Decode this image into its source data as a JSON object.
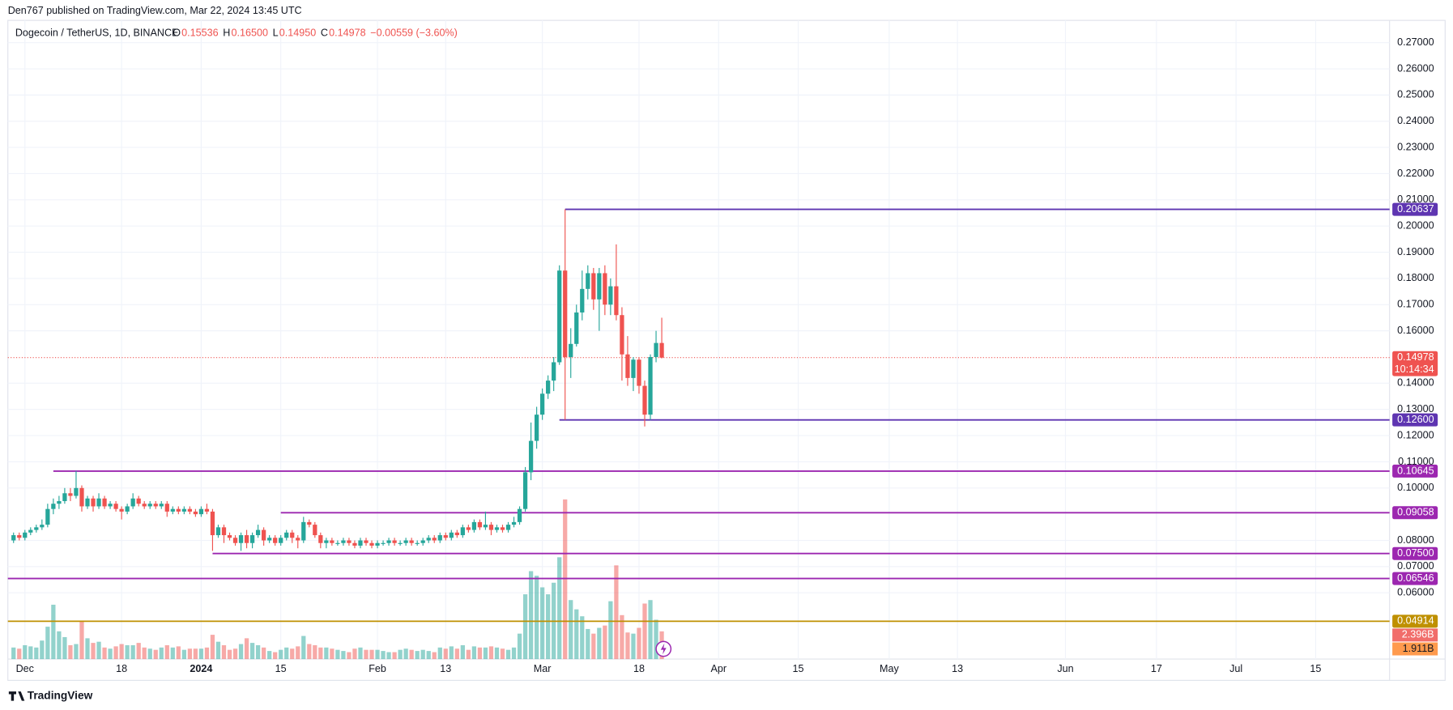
{
  "header": {
    "publisher": "Den767 published on TradingView.com, Mar 22, 2024 13:45 UTC",
    "footer": "TradingView"
  },
  "chart_data": {
    "type": "candlestick",
    "symbol": "Dogecoin / TetherUS, 1D, BINANCE",
    "ohlc_header": [
      {
        "key": "O",
        "text": "0.15536"
      },
      {
        "key": "H",
        "text": "0.16500"
      },
      {
        "key": "L",
        "text": "0.14950"
      },
      {
        "key": "C",
        "text": "0.14978"
      }
    ],
    "change": "−0.00559 (−3.60%)",
    "up_color": "#26a69a",
    "down_color": "#ef5350",
    "xlim": [
      "2023-11-28",
      "2024-07-28"
    ],
    "xticks": [
      {
        "value": "2023-12-01",
        "label": "Dec"
      },
      {
        "value": "2023-12-18",
        "label": "18"
      },
      {
        "value": "2024-01-01",
        "label": "2024"
      },
      {
        "value": "2024-01-15",
        "label": "15"
      },
      {
        "value": "2024-02-01",
        "label": "Feb"
      },
      {
        "value": "2024-02-13",
        "label": "13"
      },
      {
        "value": "2024-03-01",
        "label": "Mar"
      },
      {
        "value": "2024-03-18",
        "label": "18"
      },
      {
        "value": "2024-04-01",
        "label": "Apr"
      },
      {
        "value": "2024-04-15",
        "label": "15"
      },
      {
        "value": "2024-05-01",
        "label": "May"
      },
      {
        "value": "2024-05-13",
        "label": "13"
      },
      {
        "value": "2024-06-01",
        "label": "Jun"
      },
      {
        "value": "2024-06-17",
        "label": "17"
      },
      {
        "value": "2024-07-01",
        "label": "Jul"
      },
      {
        "value": "2024-07-15",
        "label": "15"
      }
    ],
    "ylim": [
      0.0347,
      0.2785
    ],
    "yticks": [
      {
        "value": 0.27,
        "label": "0.27000"
      },
      {
        "value": 0.26,
        "label": "0.26000"
      },
      {
        "value": 0.25,
        "label": "0.25000"
      },
      {
        "value": 0.24,
        "label": "0.24000"
      },
      {
        "value": 0.23,
        "label": "0.23000"
      },
      {
        "value": 0.22,
        "label": "0.22000"
      },
      {
        "value": 0.21,
        "label": "0.21000"
      },
      {
        "value": 0.2,
        "label": "0.20000"
      },
      {
        "value": 0.19,
        "label": "0.19000"
      },
      {
        "value": 0.18,
        "label": "0.18000"
      },
      {
        "value": 0.17,
        "label": "0.17000"
      },
      {
        "value": 0.16,
        "label": "0.16000"
      },
      {
        "value": 0.14,
        "label": "0.14000"
      },
      {
        "value": 0.13,
        "label": "0.13000"
      },
      {
        "value": 0.12,
        "label": "0.12000"
      },
      {
        "value": 0.11,
        "label": "0.11000"
      },
      {
        "value": 0.1,
        "label": "0.10000"
      },
      {
        "value": 0.08,
        "label": "0.08000"
      },
      {
        "value": 0.07,
        "label": "0.07000"
      },
      {
        "value": 0.06,
        "label": "0.06000"
      }
    ],
    "grid": true,
    "x": [
      "2023-11-29",
      "2023-11-30",
      "2023-12-01",
      "2023-12-02",
      "2023-12-03",
      "2023-12-04",
      "2023-12-05",
      "2023-12-06",
      "2023-12-07",
      "2023-12-08",
      "2023-12-09",
      "2023-12-10",
      "2023-12-11",
      "2023-12-12",
      "2023-12-13",
      "2023-12-14",
      "2023-12-15",
      "2023-12-16",
      "2023-12-17",
      "2023-12-18",
      "2023-12-19",
      "2023-12-20",
      "2023-12-21",
      "2023-12-22",
      "2023-12-23",
      "2023-12-24",
      "2023-12-25",
      "2023-12-26",
      "2023-12-27",
      "2023-12-28",
      "2023-12-29",
      "2023-12-30",
      "2023-12-31",
      "2024-01-01",
      "2024-01-02",
      "2024-01-03",
      "2024-01-04",
      "2024-01-05",
      "2024-01-06",
      "2024-01-07",
      "2024-01-08",
      "2024-01-09",
      "2024-01-10",
      "2024-01-11",
      "2024-01-12",
      "2024-01-13",
      "2024-01-14",
      "2024-01-15",
      "2024-01-16",
      "2024-01-17",
      "2024-01-18",
      "2024-01-19",
      "2024-01-20",
      "2024-01-21",
      "2024-01-22",
      "2024-01-23",
      "2024-01-24",
      "2024-01-25",
      "2024-01-26",
      "2024-01-27",
      "2024-01-28",
      "2024-01-29",
      "2024-01-30",
      "2024-01-31",
      "2024-02-01",
      "2024-02-02",
      "2024-02-03",
      "2024-02-04",
      "2024-02-05",
      "2024-02-06",
      "2024-02-07",
      "2024-02-08",
      "2024-02-09",
      "2024-02-10",
      "2024-02-11",
      "2024-02-12",
      "2024-02-13",
      "2024-02-14",
      "2024-02-15",
      "2024-02-16",
      "2024-02-17",
      "2024-02-18",
      "2024-02-19",
      "2024-02-20",
      "2024-02-21",
      "2024-02-22",
      "2024-02-23",
      "2024-02-24",
      "2024-02-25",
      "2024-02-26",
      "2024-02-27",
      "2024-02-28",
      "2024-02-29",
      "2024-03-01",
      "2024-03-02",
      "2024-03-03",
      "2024-03-04",
      "2024-03-05",
      "2024-03-06",
      "2024-03-07",
      "2024-03-08",
      "2024-03-09",
      "2024-03-10",
      "2024-03-11",
      "2024-03-12",
      "2024-03-13",
      "2024-03-14",
      "2024-03-15",
      "2024-03-16",
      "2024-03-17",
      "2024-03-18",
      "2024-03-19",
      "2024-03-20",
      "2024-03-21",
      "2024-03-22"
    ],
    "candles": [
      [
        0.08,
        0.083,
        0.079,
        0.082
      ],
      [
        0.082,
        0.083,
        0.08,
        0.081
      ],
      [
        0.081,
        0.084,
        0.08,
        0.083
      ],
      [
        0.083,
        0.085,
        0.082,
        0.084
      ],
      [
        0.084,
        0.086,
        0.083,
        0.085
      ],
      [
        0.085,
        0.088,
        0.084,
        0.086
      ],
      [
        0.086,
        0.094,
        0.085,
        0.092
      ],
      [
        0.092,
        0.096,
        0.09,
        0.094
      ],
      [
        0.094,
        0.097,
        0.092,
        0.095
      ],
      [
        0.095,
        0.1,
        0.094,
        0.098
      ],
      [
        0.098,
        0.1,
        0.095,
        0.097
      ],
      [
        0.097,
        0.1065,
        0.096,
        0.1
      ],
      [
        0.1,
        0.101,
        0.091,
        0.093
      ],
      [
        0.093,
        0.097,
        0.092,
        0.096
      ],
      [
        0.096,
        0.097,
        0.091,
        0.093
      ],
      [
        0.093,
        0.098,
        0.092,
        0.096
      ],
      [
        0.096,
        0.097,
        0.092,
        0.093
      ],
      [
        0.093,
        0.095,
        0.092,
        0.094
      ],
      [
        0.094,
        0.095,
        0.091,
        0.092
      ],
      [
        0.092,
        0.093,
        0.088,
        0.091
      ],
      [
        0.091,
        0.094,
        0.09,
        0.093
      ],
      [
        0.093,
        0.098,
        0.092,
        0.096
      ],
      [
        0.096,
        0.097,
        0.093,
        0.094
      ],
      [
        0.094,
        0.095,
        0.092,
        0.093
      ],
      [
        0.093,
        0.095,
        0.092,
        0.094
      ],
      [
        0.094,
        0.095,
        0.092,
        0.093
      ],
      [
        0.093,
        0.095,
        0.092,
        0.094
      ],
      [
        0.094,
        0.095,
        0.089,
        0.091
      ],
      [
        0.091,
        0.093,
        0.09,
        0.092
      ],
      [
        0.092,
        0.093,
        0.09,
        0.091
      ],
      [
        0.091,
        0.093,
        0.09,
        0.092
      ],
      [
        0.092,
        0.093,
        0.09,
        0.091
      ],
      [
        0.091,
        0.092,
        0.089,
        0.09
      ],
      [
        0.09,
        0.093,
        0.089,
        0.092
      ],
      [
        0.092,
        0.094,
        0.09,
        0.091
      ],
      [
        0.091,
        0.092,
        0.076,
        0.082
      ],
      [
        0.082,
        0.086,
        0.081,
        0.085
      ],
      [
        0.085,
        0.086,
        0.079,
        0.082
      ],
      [
        0.082,
        0.083,
        0.08,
        0.081
      ],
      [
        0.081,
        0.082,
        0.078,
        0.079
      ],
      [
        0.079,
        0.083,
        0.076,
        0.082
      ],
      [
        0.082,
        0.084,
        0.077,
        0.079
      ],
      [
        0.079,
        0.083,
        0.077,
        0.082
      ],
      [
        0.082,
        0.086,
        0.081,
        0.084
      ],
      [
        0.084,
        0.085,
        0.078,
        0.08
      ],
      [
        0.08,
        0.082,
        0.079,
        0.081
      ],
      [
        0.081,
        0.082,
        0.078,
        0.079
      ],
      [
        0.079,
        0.082,
        0.078,
        0.081
      ],
      [
        0.081,
        0.084,
        0.08,
        0.083
      ],
      [
        0.083,
        0.084,
        0.079,
        0.081
      ],
      [
        0.081,
        0.082,
        0.077,
        0.08
      ],
      [
        0.08,
        0.089,
        0.079,
        0.087
      ],
      [
        0.087,
        0.088,
        0.085,
        0.086
      ],
      [
        0.086,
        0.087,
        0.081,
        0.082
      ],
      [
        0.082,
        0.083,
        0.077,
        0.079
      ],
      [
        0.079,
        0.081,
        0.077,
        0.08
      ],
      [
        0.08,
        0.081,
        0.078,
        0.079
      ],
      [
        0.079,
        0.08,
        0.078,
        0.079
      ],
      [
        0.079,
        0.081,
        0.078,
        0.08
      ],
      [
        0.08,
        0.081,
        0.078,
        0.079
      ],
      [
        0.079,
        0.08,
        0.077,
        0.078
      ],
      [
        0.078,
        0.081,
        0.077,
        0.08
      ],
      [
        0.08,
        0.081,
        0.078,
        0.079
      ],
      [
        0.079,
        0.08,
        0.077,
        0.078
      ],
      [
        0.078,
        0.08,
        0.077,
        0.079
      ],
      [
        0.079,
        0.08,
        0.078,
        0.079
      ],
      [
        0.079,
        0.081,
        0.078,
        0.08
      ],
      [
        0.08,
        0.081,
        0.078,
        0.079
      ],
      [
        0.079,
        0.08,
        0.078,
        0.079
      ],
      [
        0.079,
        0.081,
        0.078,
        0.08
      ],
      [
        0.08,
        0.081,
        0.078,
        0.079
      ],
      [
        0.079,
        0.08,
        0.078,
        0.079
      ],
      [
        0.079,
        0.081,
        0.078,
        0.08
      ],
      [
        0.08,
        0.082,
        0.079,
        0.081
      ],
      [
        0.081,
        0.082,
        0.079,
        0.08
      ],
      [
        0.08,
        0.083,
        0.079,
        0.082
      ],
      [
        0.082,
        0.083,
        0.08,
        0.081
      ],
      [
        0.081,
        0.084,
        0.08,
        0.083
      ],
      [
        0.083,
        0.084,
        0.081,
        0.082
      ],
      [
        0.082,
        0.086,
        0.081,
        0.085
      ],
      [
        0.085,
        0.086,
        0.083,
        0.084
      ],
      [
        0.084,
        0.088,
        0.083,
        0.087
      ],
      [
        0.087,
        0.088,
        0.084,
        0.085
      ],
      [
        0.085,
        0.091,
        0.084,
        0.086
      ],
      [
        0.086,
        0.087,
        0.082,
        0.084
      ],
      [
        0.084,
        0.086,
        0.083,
        0.085
      ],
      [
        0.085,
        0.086,
        0.083,
        0.084
      ],
      [
        0.084,
        0.087,
        0.083,
        0.086
      ],
      [
        0.086,
        0.089,
        0.085,
        0.087
      ],
      [
        0.087,
        0.093,
        0.086,
        0.092
      ],
      [
        0.092,
        0.108,
        0.091,
        0.106
      ],
      [
        0.106,
        0.125,
        0.103,
        0.118
      ],
      [
        0.118,
        0.131,
        0.115,
        0.128
      ],
      [
        0.128,
        0.138,
        0.126,
        0.136
      ],
      [
        0.136,
        0.143,
        0.134,
        0.141
      ],
      [
        0.141,
        0.15,
        0.137,
        0.148
      ],
      [
        0.148,
        0.185,
        0.147,
        0.183
      ],
      [
        0.183,
        0.2064,
        0.126,
        0.15
      ],
      [
        0.15,
        0.161,
        0.142,
        0.155
      ],
      [
        0.155,
        0.17,
        0.154,
        0.167
      ],
      [
        0.167,
        0.183,
        0.164,
        0.176
      ],
      [
        0.176,
        0.185,
        0.172,
        0.182
      ],
      [
        0.182,
        0.184,
        0.168,
        0.172
      ],
      [
        0.172,
        0.184,
        0.16,
        0.182
      ],
      [
        0.182,
        0.185,
        0.166,
        0.17
      ],
      [
        0.17,
        0.18,
        0.166,
        0.177
      ],
      [
        0.177,
        0.193,
        0.164,
        0.166
      ],
      [
        0.166,
        0.169,
        0.141,
        0.151
      ],
      [
        0.151,
        0.158,
        0.139,
        0.142
      ],
      [
        0.142,
        0.15,
        0.137,
        0.149
      ],
      [
        0.149,
        0.15,
        0.136,
        0.139
      ],
      [
        0.139,
        0.141,
        0.1235,
        0.128
      ],
      [
        0.128,
        0.151,
        0.126,
        0.15
      ],
      [
        0.15,
        0.16,
        0.148,
        0.15536
      ],
      [
        0.15536,
        0.165,
        0.1495,
        0.14978
      ]
    ],
    "volumes": [
      1.0,
      0.9,
      1.2,
      1.1,
      1.0,
      1.6,
      2.8,
      4.7,
      2.4,
      1.9,
      1.2,
      1.3,
      3.3,
      1.8,
      1.4,
      1.5,
      1.0,
      0.9,
      1.1,
      1.3,
      1.2,
      1.2,
      1.4,
      1.0,
      0.9,
      0.8,
      1.0,
      1.2,
      1.0,
      1.1,
      0.8,
      0.9,
      0.9,
      0.9,
      1.0,
      2.1,
      1.5,
      1.2,
      0.8,
      0.9,
      1.3,
      1.8,
      1.4,
      1.2,
      1.0,
      0.7,
      0.6,
      0.8,
      1.0,
      0.9,
      1.1,
      2.0,
      1.3,
      1.2,
      1.0,
      1.0,
      0.9,
      0.8,
      0.7,
      0.6,
      0.9,
      1.0,
      0.8,
      0.8,
      0.8,
      0.7,
      0.6,
      0.6,
      0.8,
      0.9,
      0.8,
      0.7,
      0.8,
      0.7,
      0.6,
      1.0,
      0.9,
      1.1,
      0.9,
      1.2,
      0.8,
      1.1,
      1.0,
      1.0,
      1.1,
      1.0,
      0.9,
      0.8,
      1.0,
      2.2,
      5.6,
      7.6,
      7.2,
      6.2,
      5.6,
      6.6,
      8.8,
      13.8,
      5.1,
      4.3,
      3.7,
      2.6,
      2.2,
      2.7,
      2.9,
      5.0,
      8.1,
      3.8,
      2.3,
      2.2,
      2.7,
      4.8,
      5.1,
      3.4,
      2.396
    ],
    "last_volume_label": "2.396B",
    "volume_ma": {
      "value": 1.911,
      "label": "1.911B"
    },
    "last_price": {
      "value": 0.14978,
      "countdown": "10:14:34"
    },
    "levels": [
      {
        "value": 0.20637,
        "start": "2024-03-05",
        "color": "#5e35b1"
      },
      {
        "value": 0.126,
        "label": "0.12600",
        "start": "2024-03-04",
        "color": "#5e35b1"
      },
      {
        "value": 0.10645,
        "start": "2023-12-06",
        "color": "#9c27b0"
      },
      {
        "value": 0.09058,
        "start": "2024-01-15",
        "color": "#9c27b0"
      },
      {
        "value": 0.075,
        "label": "0.07500",
        "start": "2024-01-03",
        "color": "#9c27b0"
      },
      {
        "value": 0.06546,
        "start": "2023-11-28",
        "color": "#9c27b0"
      },
      {
        "value": 0.04914,
        "start": "2023-11-28",
        "color": "#bf9000"
      }
    ]
  }
}
